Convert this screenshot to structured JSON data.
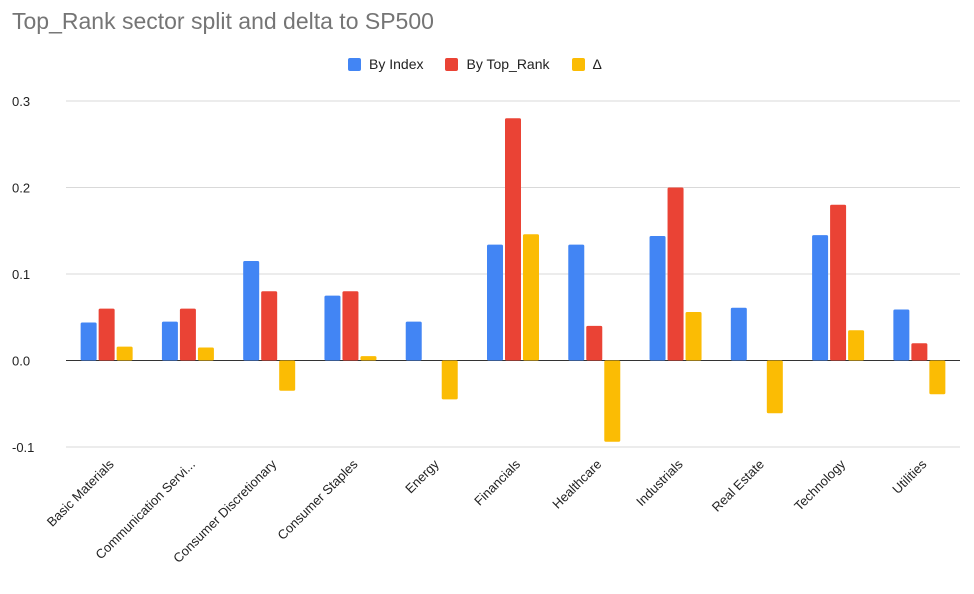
{
  "chart_data": {
    "type": "bar",
    "title": "Top_Rank sector split and delta to SP500",
    "categories": [
      "Basic Materials",
      "Communication Servi...",
      "Consumer Discretionary",
      "Consumer Staples",
      "Energy",
      "Financials",
      "Healthcare",
      "Industrials",
      "Real Estate",
      "Technology",
      "Utilities"
    ],
    "series": [
      {
        "name": "By Index",
        "color": "#4285f4",
        "values": [
          0.044,
          0.045,
          0.115,
          0.075,
          0.045,
          0.134,
          0.134,
          0.144,
          0.061,
          0.145,
          0.059
        ]
      },
      {
        "name": "By Top_Rank",
        "color": "#ea4335",
        "values": [
          0.06,
          0.06,
          0.08,
          0.08,
          0.0,
          0.28,
          0.04,
          0.2,
          0.0,
          0.18,
          0.02
        ]
      },
      {
        "name": "Δ",
        "color": "#fbbc04",
        "values": [
          0.016,
          0.015,
          -0.035,
          0.005,
          -0.045,
          0.146,
          -0.094,
          0.056,
          -0.061,
          0.035,
          -0.039
        ]
      }
    ],
    "ylim": [
      -0.1,
      0.3
    ],
    "yticks": [
      "-0.1",
      "0.0",
      "0.1",
      "0.2",
      "0.3"
    ],
    "xlabel": "",
    "ylabel": "",
    "grid": true,
    "legend_position": "top"
  }
}
